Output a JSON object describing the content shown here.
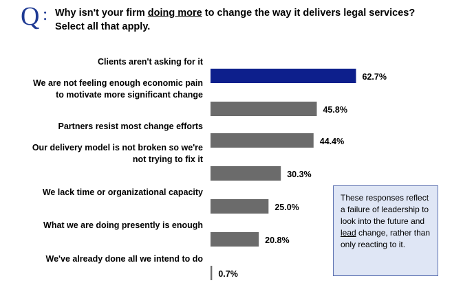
{
  "question": {
    "mark": "Q",
    "colon": ":",
    "line1_prefix": "Why isn't your firm ",
    "line1_emphasis": "doing more",
    "line1_suffix": " to change the way it delivers legal services?",
    "line2": "Select all that apply."
  },
  "note": {
    "before": "These responses reflect a failure of leadership to look into the future and ",
    "emphasis": "lead",
    "after": " change, rather than only reacting to it."
  },
  "colors": {
    "highlight": "#0d1f8c",
    "bar": "#6b6b6b",
    "brand": "#1f3a93",
    "note_bg": "#dfe6f5",
    "note_border": "#5a6fb0"
  },
  "chart_data": {
    "type": "bar",
    "orientation": "horizontal",
    "categories": [
      [
        "Clients aren't asking for it"
      ],
      [
        "We are not feeling enough economic pain",
        "to motivate more significant change"
      ],
      [
        "Partners resist most change efforts"
      ],
      [
        "Our delivery model is not broken so we're",
        "not trying to fix it"
      ],
      [
        "We lack time or organizational capacity"
      ],
      [
        "What we are doing presently is enough"
      ],
      [
        "We've already done all we intend to do"
      ]
    ],
    "values": [
      62.7,
      45.8,
      44.4,
      30.3,
      25.0,
      20.8,
      0.7
    ],
    "value_labels": [
      "62.7%",
      "45.8%",
      "44.4%",
      "30.3%",
      "25.0%",
      "20.8%",
      "0.7%"
    ],
    "highlighted_index": 0,
    "xlim": [
      0,
      100
    ],
    "grid": false,
    "legend": "none"
  }
}
